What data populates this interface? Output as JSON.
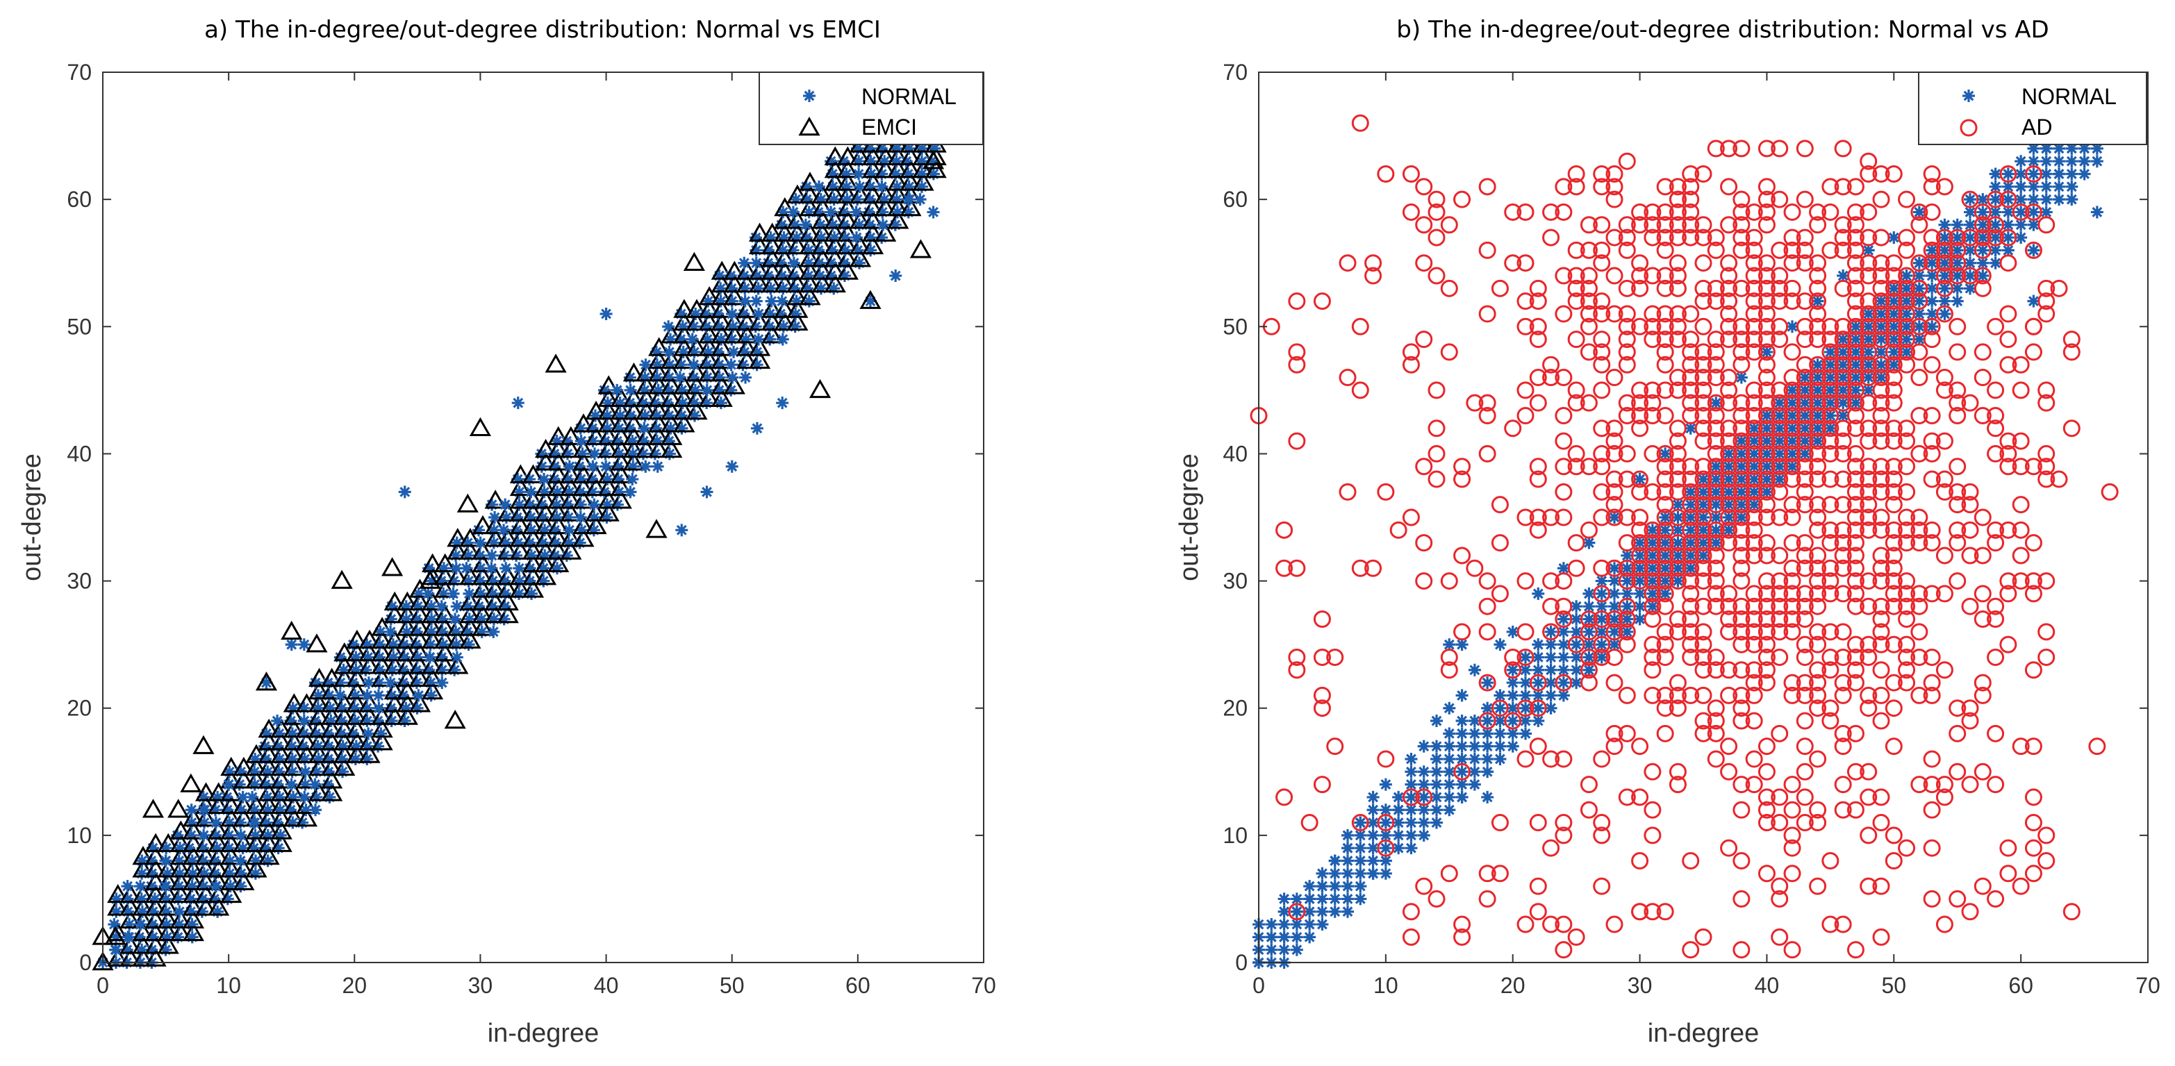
{
  "chart_data": [
    {
      "type": "scatter",
      "title": "a) The in-degree/out-degree distribution:  Normal vs EMCI",
      "xlabel": "in-degree",
      "ylabel": "out-degree",
      "xlim": [
        0,
        70
      ],
      "ylim": [
        0,
        70
      ],
      "xticks": [
        "0",
        "10",
        "20",
        "30",
        "40",
        "50",
        "60",
        "70"
      ],
      "yticks": [
        "0",
        "10",
        "20",
        "30",
        "40",
        "50",
        "60",
        "70"
      ],
      "legend": {
        "placement": "top-right",
        "entries": [
          "NORMAL",
          "EMCI"
        ]
      },
      "series": [
        {
          "name": "NORMAL",
          "marker": "asterisk",
          "color": "#1f5fb0",
          "points": [
            [
              0,
              0
            ],
            [
              1,
              1
            ],
            [
              2,
              2
            ],
            [
              3,
              3
            ],
            [
              5,
              6
            ],
            [
              5,
              8
            ],
            [
              8,
              12
            ],
            [
              9,
              6
            ],
            [
              10,
              14
            ],
            [
              12,
              11
            ],
            [
              13,
              22
            ],
            [
              15,
              25
            ],
            [
              16,
              25
            ],
            [
              24,
              37
            ],
            [
              26,
              24
            ],
            [
              33,
              44
            ],
            [
              40,
              51
            ],
            [
              46,
              34
            ],
            [
              48,
              37
            ],
            [
              50,
              39
            ],
            [
              52,
              42
            ],
            [
              54,
              44
            ],
            [
              61,
              52
            ],
            [
              63,
              54
            ],
            [
              64,
              60
            ],
            [
              66,
              59
            ]
          ]
        },
        {
          "name": "EMCI",
          "marker": "triangle",
          "color": "#000000",
          "points": [
            [
              0,
              0
            ],
            [
              0,
              2
            ],
            [
              1,
              2
            ],
            [
              4,
              12
            ],
            [
              6,
              12
            ],
            [
              7,
              14
            ],
            [
              8,
              17
            ],
            [
              13,
              22
            ],
            [
              15,
              26
            ],
            [
              17,
              25
            ],
            [
              19,
              30
            ],
            [
              23,
              31
            ],
            [
              28,
              19
            ],
            [
              26,
              30
            ],
            [
              29,
              36
            ],
            [
              30,
              42
            ],
            [
              36,
              47
            ],
            [
              44,
              34
            ],
            [
              47,
              55
            ],
            [
              57,
              45
            ],
            [
              61,
              52
            ],
            [
              65,
              56
            ],
            [
              66,
              63
            ],
            [
              66,
              65
            ]
          ]
        }
      ],
      "band": {
        "description": "dense diagonal cluster",
        "center_offset": 0,
        "halfwidth_y": 5,
        "x_range": [
          0,
          66
        ]
      }
    },
    {
      "type": "scatter",
      "title": "b) The in-degree/out-degree distribution:  Normal vs AD",
      "xlabel": "in-degree",
      "ylabel": "out-degree",
      "xlim": [
        0,
        70
      ],
      "ylim": [
        0,
        70
      ],
      "xticks": [
        "0",
        "10",
        "20",
        "30",
        "40",
        "50",
        "60",
        "70"
      ],
      "yticks": [
        "0",
        "10",
        "20",
        "30",
        "40",
        "50",
        "60",
        "70"
      ],
      "legend": {
        "placement": "top-right",
        "entries": [
          "NORMAL",
          "AD"
        ]
      },
      "series": [
        {
          "name": "NORMAL",
          "marker": "asterisk",
          "color": "#1f5fb0",
          "points": [
            [
              0,
              0
            ],
            [
              1,
              2
            ],
            [
              2,
              2
            ],
            [
              3,
              4
            ],
            [
              4,
              5
            ],
            [
              5,
              6
            ],
            [
              6,
              8
            ],
            [
              7,
              9
            ],
            [
              8,
              11
            ],
            [
              9,
              13
            ],
            [
              10,
              14
            ],
            [
              11,
              12
            ],
            [
              12,
              16
            ],
            [
              13,
              17
            ],
            [
              14,
              19
            ],
            [
              15,
              20
            ],
            [
              16,
              21
            ],
            [
              17,
              23
            ],
            [
              18,
              22
            ],
            [
              19,
              25
            ],
            [
              20,
              26
            ],
            [
              22,
              29
            ],
            [
              24,
              31
            ],
            [
              26,
              33
            ],
            [
              28,
              35
            ],
            [
              30,
              38
            ],
            [
              32,
              40
            ],
            [
              34,
              42
            ],
            [
              36,
              44
            ],
            [
              38,
              46
            ],
            [
              40,
              48
            ],
            [
              42,
              50
            ],
            [
              44,
              52
            ],
            [
              46,
              54
            ],
            [
              48,
              56
            ],
            [
              50,
              57
            ],
            [
              52,
              59
            ],
            [
              54,
              58
            ],
            [
              56,
              60
            ],
            [
              58,
              62
            ],
            [
              60,
              61
            ],
            [
              61,
              56
            ],
            [
              61,
              52
            ],
            [
              62,
              64
            ],
            [
              63,
              62
            ],
            [
              64,
              60
            ],
            [
              65,
              63
            ],
            [
              66,
              59
            ],
            [
              15,
              25
            ],
            [
              16,
              25
            ],
            [
              16,
              13
            ],
            [
              18,
              13
            ],
            [
              9,
              7
            ]
          ]
        },
        {
          "name": "AD",
          "marker": "circle",
          "color": "#e8262b",
          "points": [
            [
              0,
              43
            ],
            [
              1,
              50
            ],
            [
              3,
              52
            ],
            [
              3,
              47
            ],
            [
              3,
              41
            ],
            [
              3,
              31
            ],
            [
              3,
              24
            ],
            [
              3,
              23
            ],
            [
              2,
              31
            ],
            [
              4,
              11
            ],
            [
              5,
              52
            ],
            [
              5,
              27
            ],
            [
              5,
              21
            ],
            [
              6,
              17
            ],
            [
              7,
              55
            ],
            [
              7,
              46
            ],
            [
              8,
              66
            ],
            [
              8,
              11
            ],
            [
              9,
              54
            ],
            [
              10,
              62
            ],
            [
              10,
              16
            ],
            [
              10,
              11
            ],
            [
              12,
              59
            ],
            [
              12,
              2
            ],
            [
              13,
              61
            ],
            [
              13,
              6
            ],
            [
              14,
              57
            ],
            [
              15,
              7
            ],
            [
              16,
              60
            ],
            [
              16,
              3
            ],
            [
              18,
              5
            ],
            [
              19,
              7
            ],
            [
              20,
              59
            ],
            [
              22,
              4
            ],
            [
              23,
              3
            ],
            [
              24,
              1
            ],
            [
              25,
              2
            ],
            [
              26,
              58
            ],
            [
              27,
              6
            ],
            [
              28,
              62
            ],
            [
              28,
              3
            ],
            [
              29,
              63
            ],
            [
              30,
              53
            ],
            [
              30,
              4
            ],
            [
              31,
              4
            ],
            [
              33,
              60
            ],
            [
              34,
              60
            ],
            [
              35,
              2
            ],
            [
              36,
              64
            ],
            [
              37,
              64
            ],
            [
              38,
              64
            ],
            [
              40,
              64
            ],
            [
              41,
              64
            ],
            [
              42,
              1
            ],
            [
              43,
              64
            ],
            [
              46,
              64
            ],
            [
              48,
              63
            ],
            [
              50,
              62
            ],
            [
              52,
              53
            ],
            [
              55,
              5
            ],
            [
              57,
              6
            ],
            [
              58,
              5
            ],
            [
              60,
              6
            ],
            [
              61,
              50
            ],
            [
              61,
              13
            ],
            [
              62,
              24
            ],
            [
              63,
              53
            ],
            [
              64,
              49
            ],
            [
              64,
              48
            ],
            [
              64,
              42
            ],
            [
              64,
              4
            ],
            [
              66,
              17
            ],
            [
              67,
              37
            ],
            [
              60,
              30
            ],
            [
              59,
              9
            ],
            [
              47,
              1
            ],
            [
              52,
              59
            ],
            [
              56,
              60
            ],
            [
              58,
              57
            ],
            [
              59,
              55
            ],
            [
              60,
              45
            ],
            [
              60,
              41
            ],
            [
              61,
              39
            ],
            [
              62,
              39
            ],
            [
              63,
              38
            ]
          ]
        }
      ]
    }
  ]
}
